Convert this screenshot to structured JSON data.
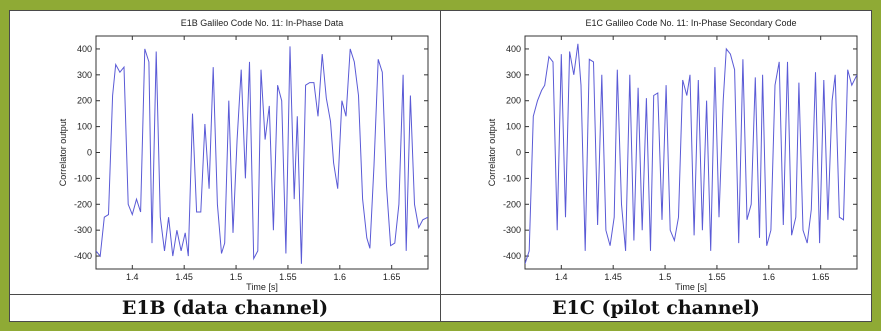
{
  "chart_data": [
    {
      "type": "line",
      "title": "E1B Galileo Code No. 11: In-Phase Data",
      "caption": "E1B (data channel)",
      "xlabel": "Time [s]",
      "ylabel": "Correlator output",
      "xlim": [
        1.365,
        1.685
      ],
      "ylim": [
        -450,
        450
      ],
      "xticks": [
        1.4,
        1.45,
        1.5,
        1.55,
        1.6,
        1.65
      ],
      "xtick_labels": [
        "1.4",
        "1.45",
        "1.5",
        "1.55",
        "1.6",
        "1.65"
      ],
      "yticks": [
        -400,
        -300,
        -200,
        -100,
        0,
        100,
        200,
        300,
        400
      ],
      "yticks_labels": [
        "-400",
        "-300",
        "-200",
        "-100",
        "0",
        "100",
        "200",
        "300",
        "400"
      ],
      "grid": false,
      "color": "#5a5ad6",
      "series": [
        {
          "x": [
            1.365,
            1.369,
            1.373,
            1.377,
            1.381,
            1.384,
            1.388,
            1.392,
            1.396,
            1.4,
            1.404,
            1.408,
            1.412,
            1.416,
            1.419,
            1.423,
            1.427,
            1.431,
            1.435,
            1.439,
            1.443,
            1.447,
            1.451,
            1.454,
            1.458,
            1.462,
            1.466,
            1.47,
            1.474,
            1.478,
            1.482,
            1.486,
            1.489,
            1.493,
            1.497,
            1.501,
            1.505,
            1.509,
            1.513,
            1.517,
            1.521,
            1.524,
            1.528,
            1.532,
            1.536,
            1.54,
            1.544,
            1.548,
            1.552,
            1.556,
            1.559,
            1.563,
            1.567,
            1.571,
            1.575,
            1.579,
            1.583,
            1.587,
            1.591,
            1.594,
            1.598,
            1.602,
            1.606,
            1.61,
            1.614,
            1.618,
            1.622,
            1.626,
            1.629,
            1.633,
            1.637,
            1.641,
            1.645,
            1.649,
            1.653,
            1.657,
            1.661,
            1.664,
            1.668,
            1.672,
            1.676,
            1.68,
            1.685
          ],
          "y": [
            -380,
            -400,
            -250,
            -240,
            220,
            340,
            310,
            330,
            -200,
            -240,
            -180,
            -230,
            400,
            350,
            -350,
            390,
            -250,
            -380,
            -250,
            -400,
            -300,
            -380,
            -310,
            -400,
            150,
            -230,
            -230,
            110,
            -140,
            330,
            -200,
            -390,
            -350,
            200,
            -310,
            50,
            320,
            -100,
            350,
            -410,
            -380,
            320,
            50,
            180,
            -300,
            260,
            200,
            -390,
            410,
            -180,
            140,
            -430,
            260,
            270,
            270,
            140,
            380,
            210,
            120,
            -40,
            -140,
            200,
            140,
            400,
            350,
            220,
            -180,
            -330,
            -370,
            -50,
            360,
            310,
            -130,
            -360,
            -350,
            -200,
            300,
            -380,
            220,
            -200,
            -290,
            -260,
            -250
          ]
        }
      ]
    },
    {
      "type": "line",
      "title": "E1C Galileo Code No. 11: In-Phase Secondary Code",
      "caption": "E1C (pilot channel)",
      "xlabel": "Time [s]",
      "ylabel": "Correlator output",
      "xlim": [
        1.365,
        1.685
      ],
      "ylim": [
        -450,
        450
      ],
      "xticks": [
        1.4,
        1.45,
        1.5,
        1.55,
        1.6,
        1.65
      ],
      "xtick_labels": [
        "1.4",
        "1.45",
        "1.5",
        "1.55",
        "1.6",
        "1.65"
      ],
      "yticks": [
        -400,
        -300,
        -200,
        -100,
        0,
        100,
        200,
        300,
        400
      ],
      "yticks_labels": [
        "-400",
        "-300",
        "-200",
        "-100",
        "0",
        "100",
        "200",
        "300",
        "400"
      ],
      "grid": false,
      "color": "#5a5ad6",
      "series": [
        {
          "x": [
            1.365,
            1.369,
            1.373,
            1.377,
            1.381,
            1.384,
            1.388,
            1.392,
            1.396,
            1.4,
            1.404,
            1.408,
            1.412,
            1.416,
            1.419,
            1.423,
            1.427,
            1.431,
            1.435,
            1.439,
            1.443,
            1.447,
            1.451,
            1.454,
            1.458,
            1.462,
            1.466,
            1.47,
            1.474,
            1.478,
            1.482,
            1.486,
            1.489,
            1.493,
            1.497,
            1.501,
            1.505,
            1.509,
            1.513,
            1.517,
            1.521,
            1.524,
            1.528,
            1.532,
            1.536,
            1.54,
            1.544,
            1.548,
            1.552,
            1.556,
            1.559,
            1.563,
            1.567,
            1.571,
            1.575,
            1.579,
            1.583,
            1.587,
            1.591,
            1.594,
            1.598,
            1.602,
            1.606,
            1.61,
            1.614,
            1.618,
            1.622,
            1.626,
            1.629,
            1.633,
            1.637,
            1.641,
            1.645,
            1.649,
            1.653,
            1.657,
            1.661,
            1.664,
            1.668,
            1.672,
            1.676,
            1.68,
            1.685
          ],
          "y": [
            -430,
            -380,
            140,
            200,
            240,
            260,
            370,
            350,
            -300,
            380,
            -250,
            390,
            300,
            420,
            260,
            -380,
            360,
            350,
            -280,
            300,
            -300,
            -360,
            -250,
            320,
            -200,
            -380,
            300,
            -340,
            250,
            -300,
            210,
            -380,
            220,
            230,
            -260,
            260,
            -300,
            -340,
            -250,
            280,
            220,
            300,
            -320,
            280,
            -300,
            200,
            -380,
            330,
            -250,
            200,
            400,
            380,
            320,
            -350,
            360,
            -260,
            -200,
            290,
            -330,
            300,
            -360,
            -300,
            260,
            350,
            -280,
            350,
            -320,
            -250,
            270,
            -300,
            -350,
            -220,
            310,
            -350,
            280,
            -260,
            200,
            300,
            -250,
            -260,
            320,
            260,
            300
          ]
        }
      ]
    }
  ]
}
